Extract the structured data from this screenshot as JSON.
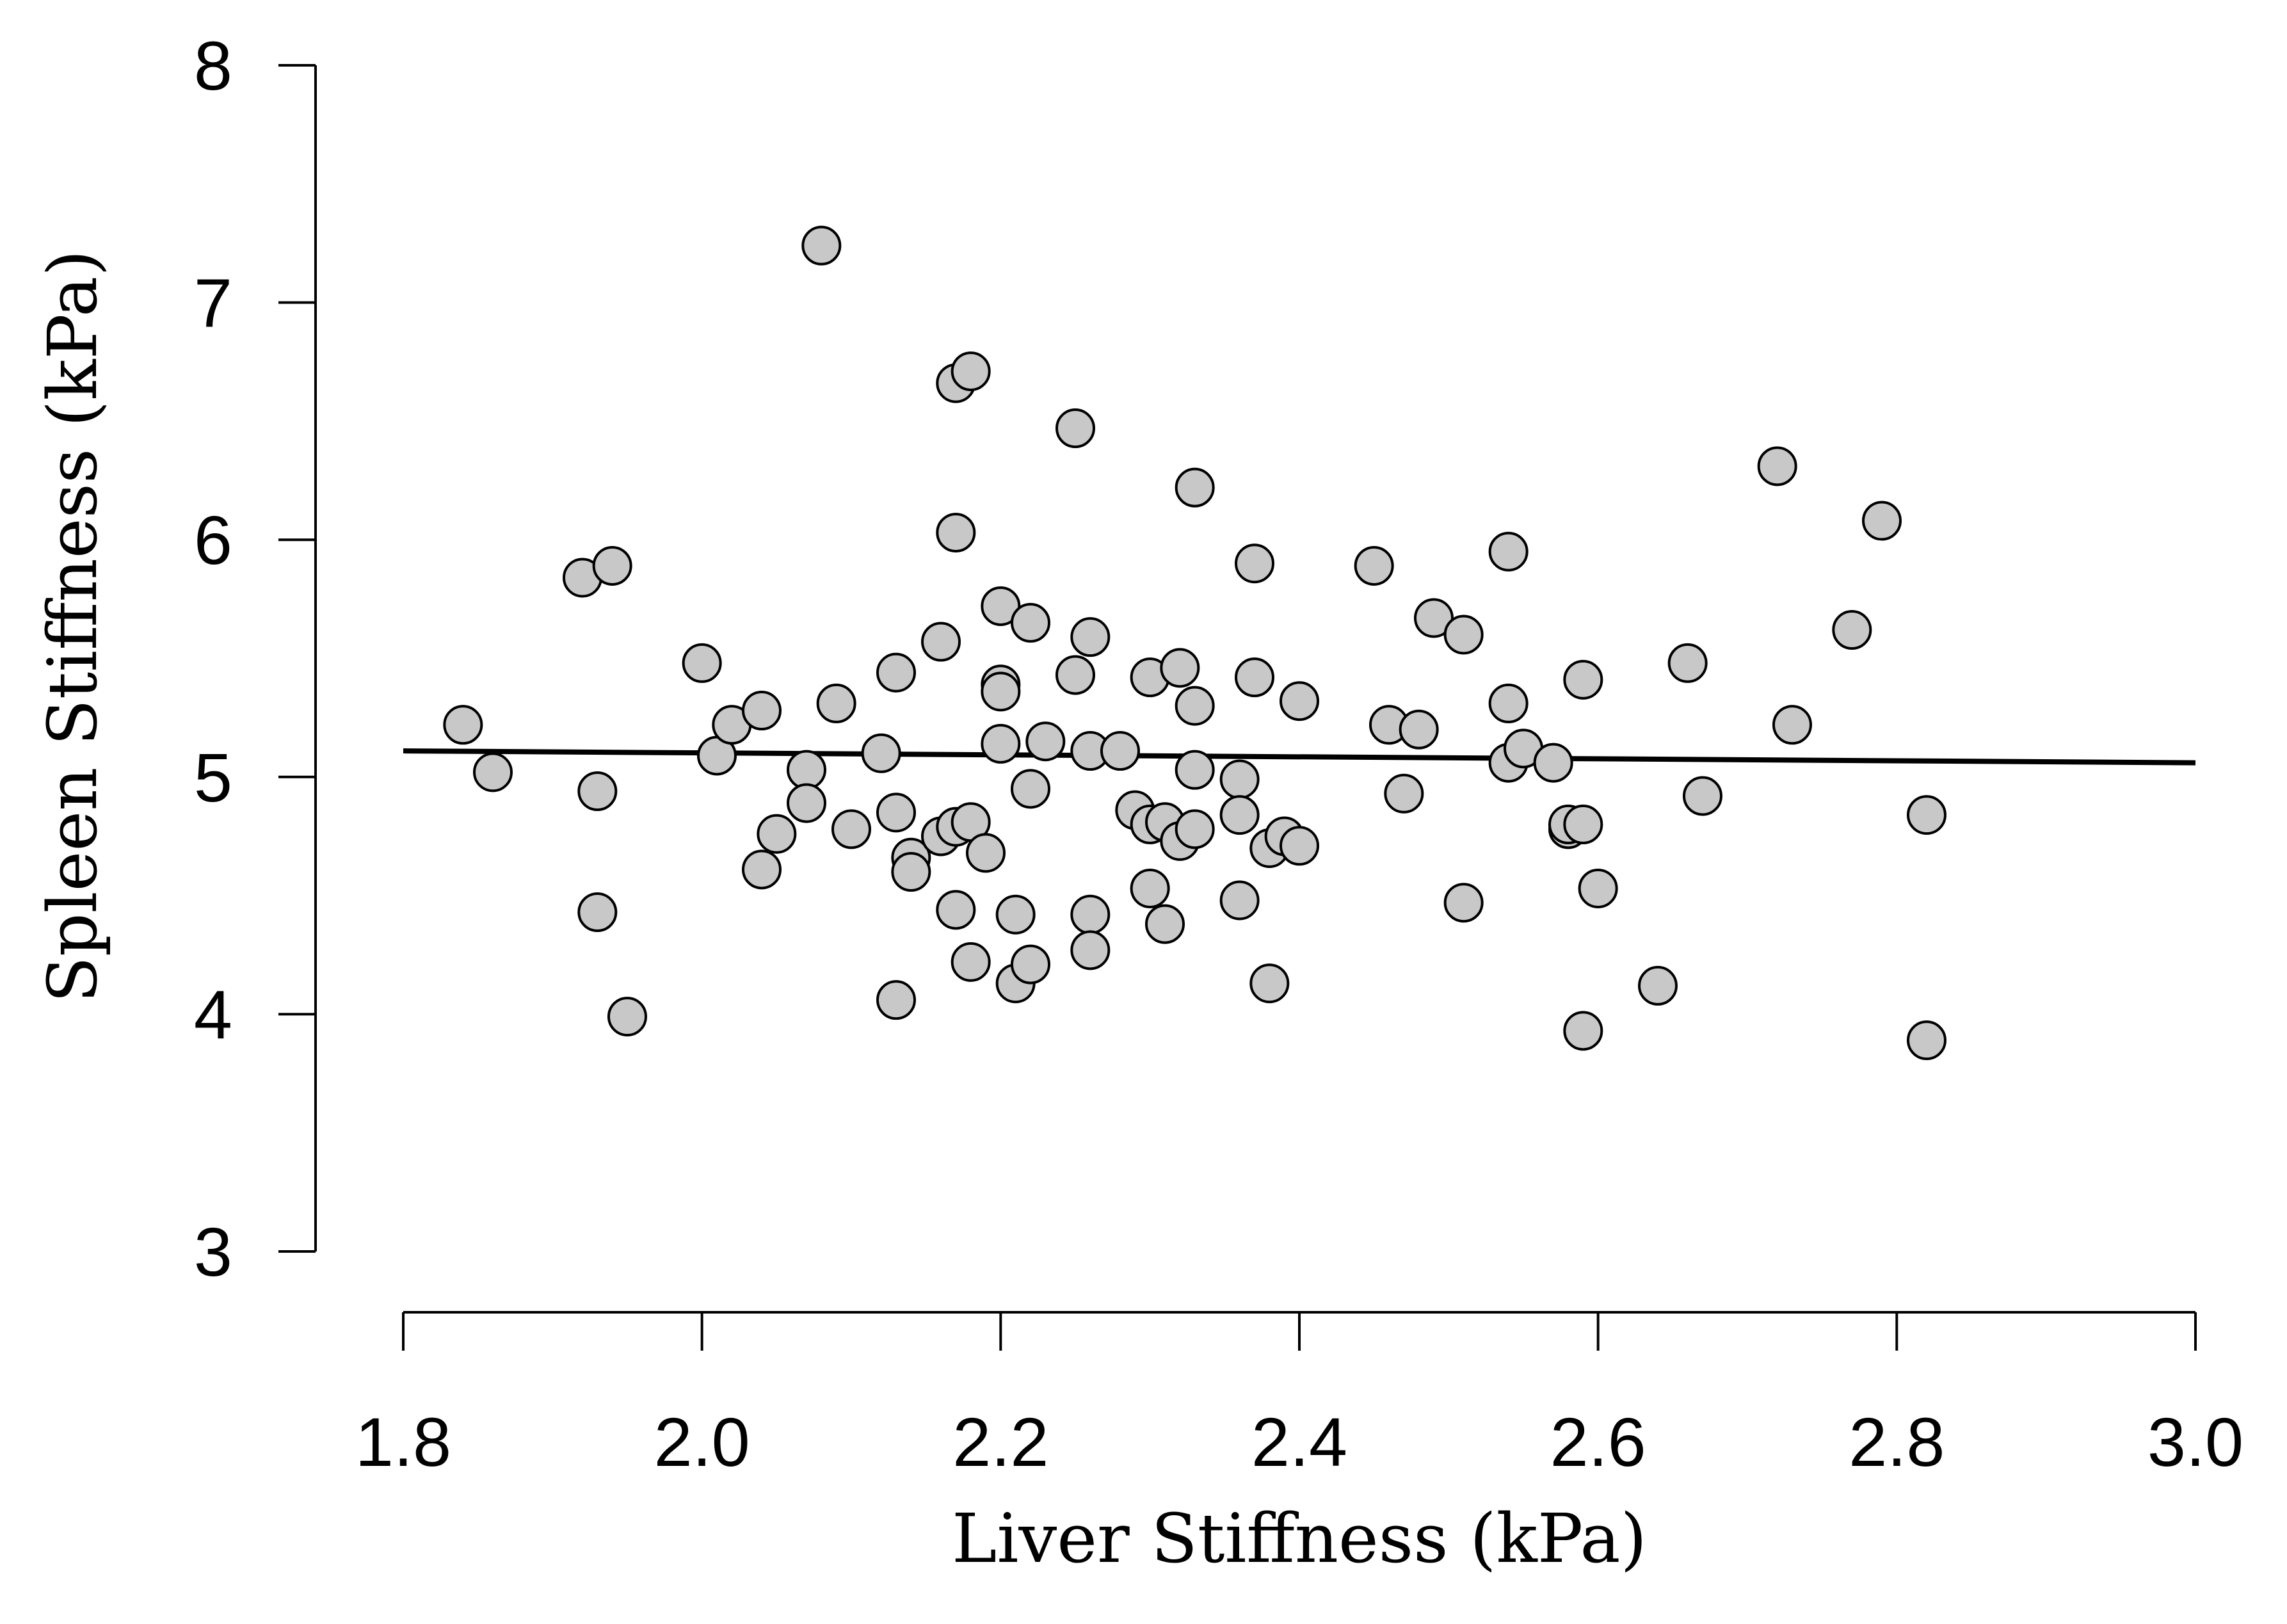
{
  "chart_data": {
    "type": "scatter",
    "title": "",
    "xlabel": "Liver Stiffness (kPa)",
    "ylabel": "Spleen Stiffness (kPa)",
    "xlim": [
      1.8,
      3.0
    ],
    "ylim": [
      3,
      8
    ],
    "x_ticks": [
      "1.8",
      "2.0",
      "2.2",
      "2.4",
      "2.6",
      "2.8",
      "3.0"
    ],
    "y_ticks": [
      "3",
      "4",
      "5",
      "6",
      "7",
      "8"
    ],
    "grid": false,
    "trend_line": {
      "x": [
        1.8,
        3.0
      ],
      "y": [
        5.11,
        5.06
      ]
    },
    "points": [
      [
        1.84,
        5.22
      ],
      [
        1.86,
        5.02
      ],
      [
        1.92,
        5.84
      ],
      [
        1.94,
        5.89
      ],
      [
        1.93,
        4.94
      ],
      [
        1.93,
        4.43
      ],
      [
        1.95,
        3.99
      ],
      [
        2.0,
        5.48
      ],
      [
        2.01,
        5.09
      ],
      [
        2.02,
        5.22
      ],
      [
        2.04,
        5.28
      ],
      [
        2.04,
        4.61
      ],
      [
        2.05,
        4.76
      ],
      [
        2.07,
        5.03
      ],
      [
        2.07,
        4.89
      ],
      [
        2.08,
        7.24
      ],
      [
        2.09,
        5.31
      ],
      [
        2.1,
        4.78
      ],
      [
        2.12,
        5.1
      ],
      [
        2.13,
        5.44
      ],
      [
        2.13,
        4.85
      ],
      [
        2.13,
        4.06
      ],
      [
        2.14,
        4.66
      ],
      [
        2.14,
        4.6
      ],
      [
        2.16,
        5.57
      ],
      [
        2.16,
        4.75
      ],
      [
        2.17,
        6.66
      ],
      [
        2.18,
        6.71
      ],
      [
        2.17,
        6.03
      ],
      [
        2.17,
        4.79
      ],
      [
        2.18,
        4.81
      ],
      [
        2.17,
        4.44
      ],
      [
        2.18,
        4.22
      ],
      [
        2.19,
        4.68
      ],
      [
        2.2,
        5.72
      ],
      [
        2.2,
        5.39
      ],
      [
        2.2,
        5.36
      ],
      [
        2.2,
        5.14
      ],
      [
        2.21,
        4.42
      ],
      [
        2.21,
        4.13
      ],
      [
        2.22,
        5.65
      ],
      [
        2.22,
        4.95
      ],
      [
        2.22,
        4.21
      ],
      [
        2.23,
        5.15
      ],
      [
        2.25,
        6.47
      ],
      [
        2.25,
        5.43
      ],
      [
        2.26,
        5.59
      ],
      [
        2.26,
        5.11
      ],
      [
        2.26,
        4.42
      ],
      [
        2.26,
        4.27
      ],
      [
        2.28,
        5.11
      ],
      [
        2.29,
        4.86
      ],
      [
        2.3,
        5.42
      ],
      [
        2.3,
        4.8
      ],
      [
        2.3,
        4.53
      ],
      [
        2.31,
        4.81
      ],
      [
        2.31,
        4.38
      ],
      [
        2.32,
        5.46
      ],
      [
        2.32,
        4.73
      ],
      [
        2.33,
        6.22
      ],
      [
        2.33,
        5.3
      ],
      [
        2.33,
        5.03
      ],
      [
        2.33,
        4.78
      ],
      [
        2.36,
        4.99
      ],
      [
        2.36,
        4.84
      ],
      [
        2.36,
        4.48
      ],
      [
        2.37,
        5.9
      ],
      [
        2.37,
        5.42
      ],
      [
        2.38,
        4.7
      ],
      [
        2.38,
        4.13
      ],
      [
        2.39,
        4.75
      ],
      [
        2.4,
        5.32
      ],
      [
        2.4,
        4.71
      ],
      [
        2.45,
        5.89
      ],
      [
        2.46,
        5.22
      ],
      [
        2.47,
        4.93
      ],
      [
        2.48,
        5.2
      ],
      [
        2.49,
        5.67
      ],
      [
        2.51,
        5.6
      ],
      [
        2.51,
        4.47
      ],
      [
        2.54,
        5.95
      ],
      [
        2.54,
        5.31
      ],
      [
        2.54,
        5.06
      ],
      [
        2.55,
        5.12
      ],
      [
        2.57,
        5.06
      ],
      [
        2.58,
        4.78
      ],
      [
        2.58,
        4.8
      ],
      [
        2.59,
        5.41
      ],
      [
        2.59,
        4.8
      ],
      [
        2.59,
        3.93
      ],
      [
        2.6,
        4.53
      ],
      [
        2.64,
        4.12
      ],
      [
        2.66,
        5.48
      ],
      [
        2.67,
        4.92
      ],
      [
        2.72,
        6.31
      ],
      [
        2.73,
        5.22
      ],
      [
        2.77,
        5.62
      ],
      [
        2.79,
        6.08
      ],
      [
        2.82,
        4.84
      ],
      [
        2.82,
        3.89
      ]
    ]
  }
}
